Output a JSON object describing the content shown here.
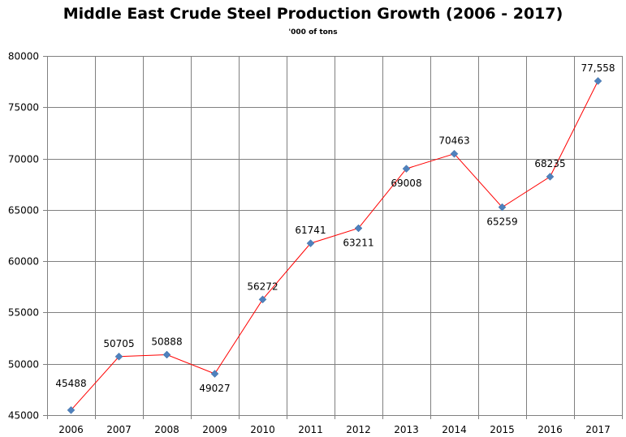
{
  "chart_data": {
    "type": "line",
    "title": "Middle East Crude Steel Production  Growth (2006 - 2017)",
    "subtitle": "'000 of tons",
    "xlabel": "",
    "ylabel": "",
    "categories": [
      "2006",
      "2007",
      "2008",
      "2009",
      "2010",
      "2011",
      "2012",
      "2013",
      "2014",
      "2015",
      "2016",
      "2017"
    ],
    "series": [
      {
        "values": [
          45488,
          50705,
          50888,
          49027,
          56272,
          61741,
          63211,
          69008,
          70463,
          65259,
          68235,
          77558
        ],
        "data_labels": [
          "45488",
          "50705",
          "50888",
          "49027",
          "56272",
          "61741",
          "63211",
          "69008",
          "70463",
          "65259",
          "68235",
          "77,558"
        ],
        "line_color": "#ff0000",
        "marker_color": "#4f81bd",
        "marker": "diamond"
      }
    ],
    "ylim": [
      45000,
      80000
    ],
    "y_ticks": [
      45000,
      50000,
      55000,
      60000,
      65000,
      70000,
      75000,
      80000
    ],
    "y_tick_labels": [
      "45000",
      "50000",
      "55000",
      "60000",
      "65000",
      "70000",
      "75000",
      "80000"
    ],
    "grid": true,
    "grid_color": "#808080",
    "legend": "none"
  }
}
